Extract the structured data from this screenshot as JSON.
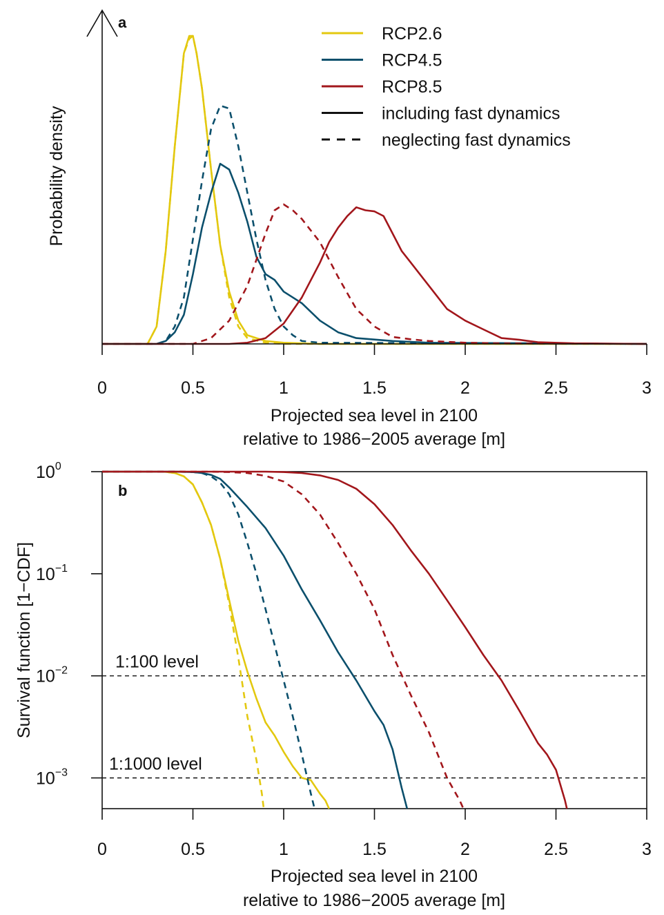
{
  "colors": {
    "RCP2.6": "#e3c80f",
    "RCP4.5": "#0b4f6c",
    "RCP8.5": "#a2161b",
    "axis": "#111111"
  },
  "legend": {
    "placement": "top-right",
    "items": [
      {
        "label": "RCP2.6",
        "key": "RCP2.6",
        "style": "solid"
      },
      {
        "label": "RCP4.5",
        "key": "RCP4.5",
        "style": "solid"
      },
      {
        "label": "RCP8.5",
        "key": "RCP8.5",
        "style": "solid"
      },
      {
        "label": "including fast dynamics",
        "key": "black",
        "style": "solid"
      },
      {
        "label": "neglecting fast dynamics",
        "key": "black",
        "style": "dashed"
      }
    ]
  },
  "chart_data": [
    {
      "panel": "a",
      "type": "line",
      "xlabel": [
        "Projected sea level in 2100",
        "relative to 1986−2005 average [m]"
      ],
      "ylabel": "Probability density",
      "xlim": [
        0,
        3
      ],
      "ylim": [
        0,
        5.3
      ],
      "xticks": [
        "0",
        "0.5",
        "1",
        "1.5",
        "2",
        "2.5",
        "3"
      ],
      "y_tick_labels": false,
      "grid": false,
      "series": [
        {
          "name": "RCP2.6",
          "dynamics": "including",
          "x": [
            0,
            0.25,
            0.3,
            0.35,
            0.4,
            0.45,
            0.48,
            0.5,
            0.52,
            0.55,
            0.6,
            0.65,
            0.7,
            0.75,
            0.8,
            0.85,
            0.9,
            1.0,
            1.2,
            3.0
          ],
          "y": [
            0,
            0,
            0.3,
            1.6,
            3.4,
            5.0,
            5.3,
            5.3,
            5.0,
            4.4,
            3.0,
            1.7,
            0.9,
            0.4,
            0.15,
            0.1,
            0.05,
            0.02,
            0,
            0
          ]
        },
        {
          "name": "RCP2.6",
          "dynamics": "neglecting",
          "x": [
            0,
            0.25,
            0.3,
            0.35,
            0.4,
            0.45,
            0.48,
            0.5,
            0.52,
            0.55,
            0.6,
            0.65,
            0.7,
            0.75,
            0.8,
            0.9,
            1.0,
            3.0
          ],
          "y": [
            0,
            0,
            0.3,
            1.6,
            3.4,
            5.0,
            5.25,
            5.3,
            5.0,
            4.4,
            3.0,
            1.7,
            0.8,
            0.3,
            0.1,
            0.02,
            0,
            0
          ]
        },
        {
          "name": "RCP4.5",
          "dynamics": "including",
          "x": [
            0,
            0.3,
            0.35,
            0.4,
            0.45,
            0.5,
            0.55,
            0.6,
            0.65,
            0.7,
            0.75,
            0.8,
            0.85,
            0.9,
            0.95,
            1.0,
            1.05,
            1.1,
            1.2,
            1.3,
            1.4,
            1.6,
            1.8,
            3.0
          ],
          "y": [
            0,
            0,
            0.05,
            0.2,
            0.5,
            1.2,
            2.0,
            2.6,
            3.1,
            3.0,
            2.6,
            2.1,
            1.5,
            1.2,
            1.1,
            0.9,
            0.8,
            0.7,
            0.4,
            0.2,
            0.1,
            0.05,
            0.02,
            0
          ]
        },
        {
          "name": "RCP4.5",
          "dynamics": "neglecting",
          "x": [
            0,
            0.3,
            0.35,
            0.4,
            0.45,
            0.5,
            0.55,
            0.6,
            0.65,
            0.7,
            0.75,
            0.8,
            0.85,
            0.9,
            0.95,
            1.0,
            1.05,
            1.1,
            1.2,
            3.0
          ],
          "y": [
            0,
            0,
            0.05,
            0.3,
            0.8,
            1.8,
            2.8,
            3.7,
            4.1,
            4.05,
            3.4,
            2.6,
            1.8,
            1.1,
            0.6,
            0.3,
            0.15,
            0.05,
            0.02,
            0
          ]
        },
        {
          "name": "RCP8.5",
          "dynamics": "including",
          "x": [
            0,
            0.7,
            0.8,
            0.9,
            1.0,
            1.1,
            1.2,
            1.25,
            1.3,
            1.35,
            1.4,
            1.45,
            1.5,
            1.55,
            1.6,
            1.65,
            1.7,
            1.8,
            1.9,
            2.0,
            2.1,
            2.2,
            2.3,
            2.4,
            2.6,
            3.0
          ],
          "y": [
            0,
            0,
            0.02,
            0.1,
            0.35,
            0.8,
            1.4,
            1.75,
            2.0,
            2.2,
            2.35,
            2.3,
            2.28,
            2.2,
            1.9,
            1.6,
            1.4,
            1.0,
            0.6,
            0.4,
            0.25,
            0.1,
            0.07,
            0.03,
            0.01,
            0
          ]
        },
        {
          "name": "RCP8.5",
          "dynamics": "neglecting",
          "x": [
            0,
            0.5,
            0.6,
            0.7,
            0.8,
            0.9,
            0.95,
            1.0,
            1.05,
            1.1,
            1.2,
            1.3,
            1.4,
            1.5,
            1.6,
            1.7,
            1.8,
            2.0,
            2.2,
            3.0
          ],
          "y": [
            0,
            0,
            0.1,
            0.4,
            1.0,
            1.9,
            2.3,
            2.4,
            2.3,
            2.15,
            1.75,
            1.15,
            0.6,
            0.3,
            0.12,
            0.08,
            0.05,
            0.02,
            0.01,
            0
          ]
        }
      ]
    },
    {
      "panel": "b",
      "type": "line",
      "xlabel": [
        "Projected sea level in 2100",
        "relative to 1986−2005 average [m]"
      ],
      "ylabel": "Survival function [1−CDF]",
      "yscale": "log",
      "xlim": [
        0,
        3
      ],
      "ylim": [
        0.0005,
        1
      ],
      "xticks": [
        "0",
        "0.5",
        "1",
        "1.5",
        "2",
        "2.5",
        "3"
      ],
      "yticks": [
        {
          "value": 1,
          "base": "10",
          "exp": "0"
        },
        {
          "value": 0.1,
          "base": "10",
          "exp": "−1"
        },
        {
          "value": 0.01,
          "base": "10",
          "exp": "−2"
        },
        {
          "value": 0.001,
          "base": "10",
          "exp": "−3"
        }
      ],
      "grid": false,
      "reference_lines": [
        {
          "label": "1:100 level",
          "y": 0.01,
          "style": "dashed"
        },
        {
          "label": "1:1000 level",
          "y": 0.001,
          "style": "dashed"
        }
      ],
      "series": [
        {
          "name": "RCP2.6",
          "dynamics": "including",
          "x": [
            0,
            0.3,
            0.35,
            0.4,
            0.45,
            0.5,
            0.55,
            0.6,
            0.65,
            0.7,
            0.75,
            0.8,
            0.85,
            0.9,
            0.95,
            1.0,
            1.05,
            1.1,
            1.15,
            1.2,
            1.23,
            1.25
          ],
          "y": [
            1,
            1,
            0.995,
            0.97,
            0.9,
            0.75,
            0.5,
            0.3,
            0.14,
            0.055,
            0.022,
            0.011,
            0.006,
            0.0035,
            0.0026,
            0.0018,
            0.0013,
            0.001,
            0.00095,
            0.0007,
            0.0006,
            0.0005
          ]
        },
        {
          "name": "RCP2.6",
          "dynamics": "neglecting",
          "x": [
            0,
            0.3,
            0.35,
            0.4,
            0.45,
            0.5,
            0.55,
            0.6,
            0.65,
            0.7,
            0.75,
            0.8,
            0.85,
            0.88,
            0.89
          ],
          "y": [
            1,
            1,
            0.995,
            0.97,
            0.9,
            0.75,
            0.5,
            0.3,
            0.14,
            0.05,
            0.015,
            0.004,
            0.0015,
            0.0007,
            0.0005
          ]
        },
        {
          "name": "RCP4.5",
          "dynamics": "including",
          "x": [
            0,
            0.4,
            0.5,
            0.55,
            0.6,
            0.65,
            0.7,
            0.8,
            0.9,
            1.0,
            1.1,
            1.2,
            1.3,
            1.4,
            1.5,
            1.55,
            1.6,
            1.65,
            1.68
          ],
          "y": [
            1,
            1,
            0.99,
            0.97,
            0.93,
            0.85,
            0.7,
            0.45,
            0.28,
            0.15,
            0.07,
            0.035,
            0.017,
            0.009,
            0.0045,
            0.0033,
            0.0019,
            0.0008,
            0.0005
          ]
        },
        {
          "name": "RCP4.5",
          "dynamics": "neglecting",
          "x": [
            0,
            0.4,
            0.5,
            0.55,
            0.6,
            0.65,
            0.7,
            0.75,
            0.8,
            0.85,
            0.9,
            0.95,
            1.0,
            1.05,
            1.1,
            1.15,
            1.17
          ],
          "y": [
            1,
            1,
            0.99,
            0.97,
            0.9,
            0.78,
            0.6,
            0.38,
            0.2,
            0.1,
            0.045,
            0.02,
            0.009,
            0.004,
            0.0017,
            0.0007,
            0.0005
          ]
        },
        {
          "name": "RCP8.5",
          "dynamics": "including",
          "x": [
            0,
            0.9,
            1.0,
            1.1,
            1.2,
            1.3,
            1.4,
            1.5,
            1.6,
            1.7,
            1.8,
            1.9,
            2.0,
            2.1,
            2.2,
            2.3,
            2.4,
            2.45,
            2.5,
            2.55,
            2.56
          ],
          "y": [
            1,
            1,
            0.99,
            0.97,
            0.92,
            0.83,
            0.68,
            0.48,
            0.3,
            0.17,
            0.1,
            0.055,
            0.03,
            0.016,
            0.009,
            0.0045,
            0.0022,
            0.0017,
            0.0012,
            0.0006,
            0.0005
          ]
        },
        {
          "name": "RCP8.5",
          "dynamics": "neglecting",
          "x": [
            0,
            0.6,
            0.7,
            0.8,
            0.9,
            1.0,
            1.1,
            1.2,
            1.3,
            1.4,
            1.5,
            1.6,
            1.7,
            1.8,
            1.9,
            1.97,
            1.99
          ],
          "y": [
            1,
            1,
            0.99,
            0.97,
            0.91,
            0.8,
            0.6,
            0.38,
            0.2,
            0.1,
            0.045,
            0.016,
            0.0065,
            0.0028,
            0.001,
            0.0006,
            0.0005
          ]
        }
      ]
    }
  ]
}
